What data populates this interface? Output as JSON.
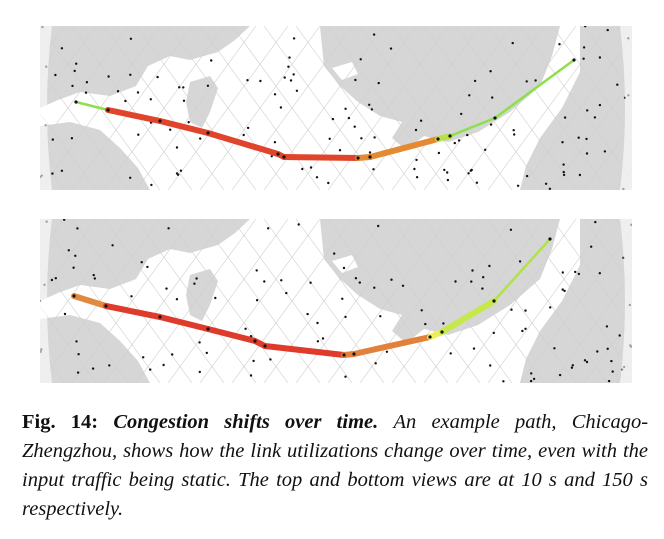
{
  "figure": {
    "caption": {
      "label": "Fig. 14:",
      "title": "Congestion shifts over time.",
      "text": "An example path, Chicago-Zhengzhou, shows how the link utilizations change over time, even with the input traffic being static. The top and bottom views are at 10 s and 150 s respectively."
    },
    "colors": {
      "land": "#d6d6d6",
      "ocean": "#ffffff",
      "grid": "#cfcfcf",
      "satellite": "#111111",
      "low_utilization": "#8ee04a",
      "mid_utilization": "#e8e84a",
      "high_utilization": "#e0472b"
    },
    "panels": [
      {
        "segment_colors": [
          "#8ee04a",
          "#e0442a",
          "#e0442a",
          "#e0442a",
          "#e0442a",
          "#e0442a",
          "#e38a32",
          "#e38a32",
          "#b9e04a",
          "#8ee04a",
          "#8ee04a"
        ]
      },
      {
        "segment_colors": [
          "#e08a40",
          "#df3b2a",
          "#df3b2a",
          "#df3b2a",
          "#df3b2a",
          "#df3b2a",
          "#e2823a",
          "#e2823a",
          "#eeee55",
          "#c7e84a",
          "#b0e24a"
        ]
      }
    ]
  }
}
